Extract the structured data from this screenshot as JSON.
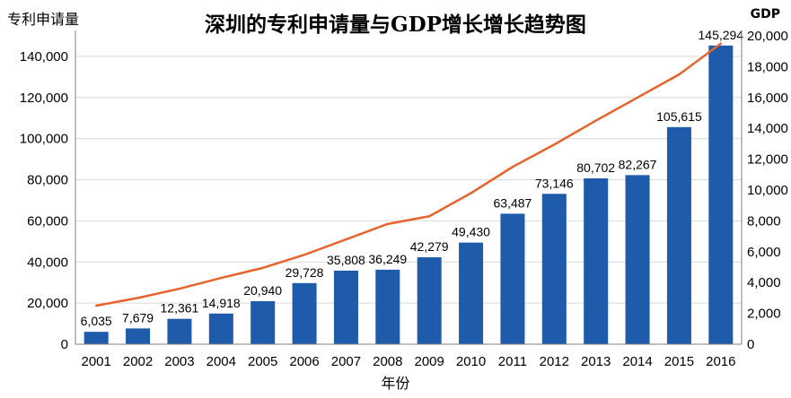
{
  "chart_data": {
    "type": "bar+line",
    "title": "深圳的专利申请量与GDP增长增长趋势图",
    "ylabel": "专利申请量",
    "y2label": "GDP",
    "xlabel": "年份",
    "categories": [
      "2001",
      "2002",
      "2003",
      "2004",
      "2005",
      "2006",
      "2007",
      "2008",
      "2009",
      "2010",
      "2011",
      "2012",
      "2013",
      "2014",
      "2015",
      "2016"
    ],
    "series": [
      {
        "name": "专利申请量",
        "type": "bar",
        "axis": "left",
        "values": [
          6035,
          7679,
          12361,
          14918,
          20940,
          29728,
          35808,
          36249,
          42279,
          49430,
          63487,
          73146,
          80702,
          82267,
          105615,
          145294
        ],
        "labels": [
          "6,035",
          "7,679",
          "12,361",
          "14,918",
          "20,940",
          "29,728",
          "35,808",
          "36,249",
          "42,279",
          "49,430",
          "63,487",
          "73,146",
          "80,702",
          "82,267",
          "105,615",
          "145,294"
        ]
      },
      {
        "name": "GDP",
        "type": "line",
        "axis": "right",
        "values": [
          2500,
          3000,
          3600,
          4300,
          4950,
          5800,
          6800,
          7800,
          8300,
          9800,
          11500,
          12950,
          14500,
          16000,
          17500,
          19500
        ]
      }
    ],
    "ylim": [
      0,
      150000
    ],
    "yticks": [
      0,
      20000,
      40000,
      60000,
      80000,
      100000,
      120000,
      140000
    ],
    "yticklabels": [
      "0",
      "20,000",
      "40,000",
      "60,000",
      "80,000",
      "100,000",
      "120,000",
      "140,000"
    ],
    "y2lim": [
      0,
      20000
    ],
    "y2ticks": [
      0,
      2000,
      4000,
      6000,
      8000,
      10000,
      12000,
      14000,
      16000,
      18000,
      20000
    ],
    "y2ticklabels": [
      "0",
      "2,000",
      "4,000",
      "6,000",
      "8,000",
      "10,000",
      "12,000",
      "14,000",
      "16,000",
      "18,000",
      "20,000"
    ],
    "grid": true,
    "colors": {
      "bar": "#1f5bab",
      "line": "#e8622c",
      "grid": "#d9d9d9",
      "axis": "#808080"
    }
  }
}
